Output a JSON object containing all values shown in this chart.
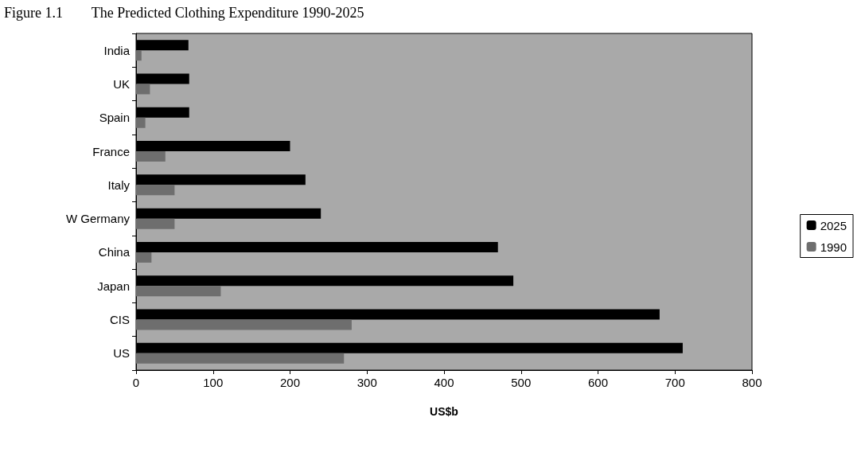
{
  "chart_data": {
    "type": "bar",
    "orientation": "horizontal",
    "title": "Figure 1.1        The Predicted Clothing Expenditure 1990-2025",
    "xlabel": "US$b",
    "categories": [
      "India",
      "UK",
      "Spain",
      "France",
      "Italy",
      "W Germany",
      "China",
      "Japan",
      "CIS",
      "US"
    ],
    "series": [
      {
        "name": "2025",
        "color": "#000000",
        "values": [
          68,
          69,
          69,
          200,
          220,
          240,
          470,
          490,
          680,
          710
        ]
      },
      {
        "name": "1990",
        "color": "#6e6e6e",
        "values": [
          7,
          18,
          12,
          38,
          50,
          50,
          20,
          110,
          280,
          270
        ]
      }
    ],
    "xlim": [
      0,
      800
    ],
    "xticks": [
      0,
      100,
      200,
      300,
      400,
      500,
      600,
      700,
      800
    ],
    "grid": false,
    "legend": "right"
  }
}
